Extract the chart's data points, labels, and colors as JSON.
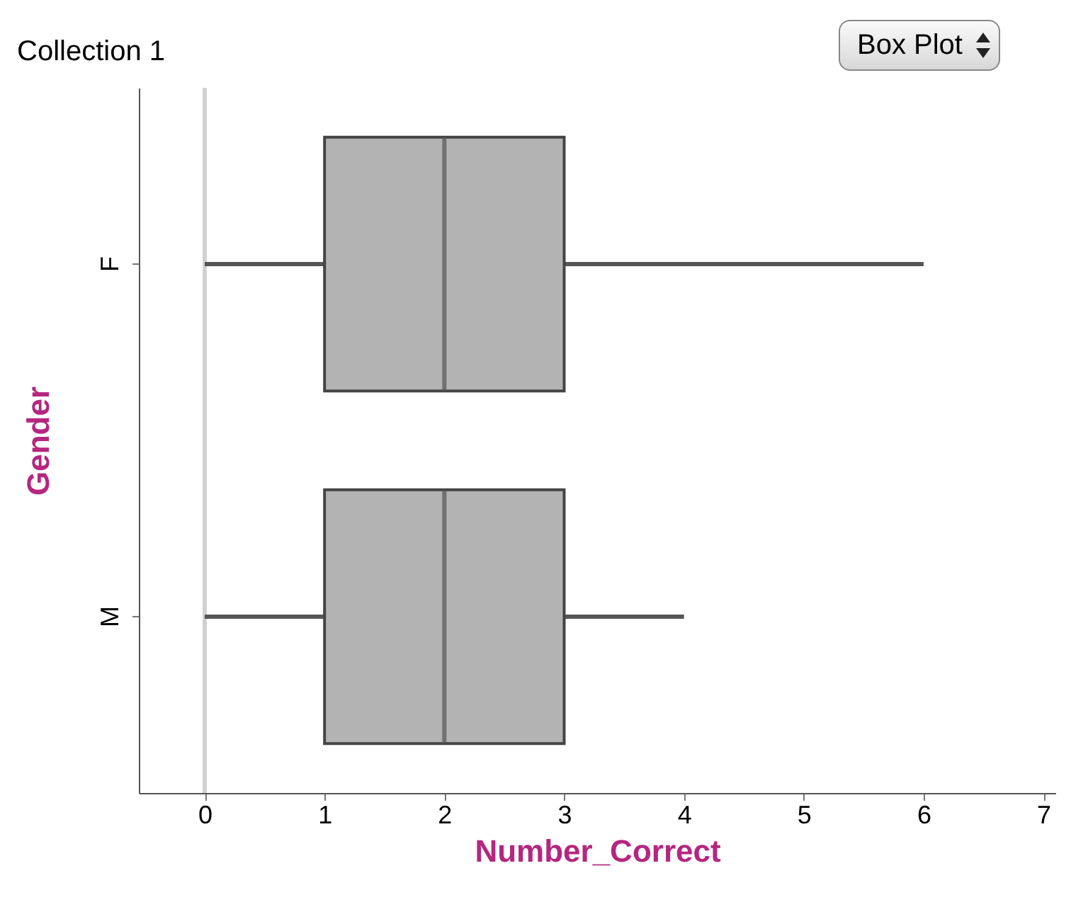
{
  "chart_data": {
    "type": "box",
    "orientation": "horizontal",
    "title": "Collection 1",
    "xlabel": "Number_Correct",
    "ylabel": "Gender",
    "categories": [
      "F",
      "M"
    ],
    "boxes": [
      {
        "low": 0,
        "q1": 1,
        "median": 2,
        "q3": 3,
        "high": 6
      },
      {
        "low": 0,
        "q1": 1,
        "median": 2,
        "q3": 3,
        "high": 4
      }
    ],
    "color": "#b3b3b3",
    "xlim": [
      -0.55,
      7.1
    ],
    "xticks": [
      0,
      1,
      2,
      3,
      4,
      5,
      6,
      7
    ],
    "ref_lines": [
      {
        "axis": "x",
        "value": 0,
        "color": "#d0d0d0"
      }
    ],
    "annotations": [
      "Box Plot"
    ],
    "grid": false
  }
}
